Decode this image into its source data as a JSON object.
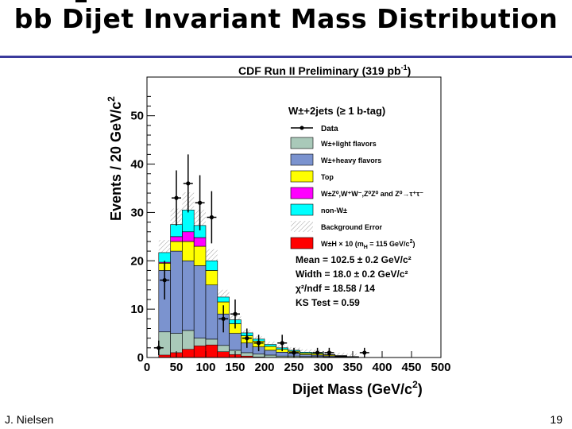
{
  "slide": {
    "title": "bb Dijet Invariant Mass Distribution",
    "author": "J. Nielsen",
    "page_number": "19"
  },
  "chart_data": {
    "type": "bar",
    "title": "CDF Run II Preliminary (319 pb",
    "title_sup": "-1",
    "title_end": ")",
    "subtitle": "W±+2jets (≥ 1 b-tag)",
    "xlabel": "Dijet Mass (GeV/c",
    "xlabel_sup": "2",
    "xlabel_end": ")",
    "ylabel": "Events / 20 GeV/c",
    "ylabel_sup": "2",
    "xlim": [
      0,
      500
    ],
    "ylim": [
      0,
      58
    ],
    "xticks": [
      "0",
      "50",
      "100",
      "150",
      "200",
      "250",
      "300",
      "350",
      "400",
      "450",
      "500"
    ],
    "yticks": [
      "0",
      "10",
      "20",
      "30",
      "40",
      "50"
    ],
    "bin_edges": [
      20,
      40,
      60,
      80,
      100,
      120,
      140,
      160,
      180,
      200,
      220,
      240,
      260,
      280,
      300,
      320,
      340,
      360
    ],
    "series": [
      {
        "name": "W±+light flavors",
        "color": "#a9c9b9",
        "values": [
          5.3,
          5.0,
          5.6,
          4.0,
          3.8,
          2.5,
          1.5,
          1.0,
          0.7,
          0.5,
          0.3,
          0.3,
          0.2,
          0.2,
          0.1,
          0.1,
          0.05
        ]
      },
      {
        "name": "W±+heavy flavors",
        "color": "#7b93cf",
        "values": [
          12.7,
          17.0,
          14.4,
          15.0,
          11.2,
          6.5,
          3.5,
          2.0,
          1.5,
          1.0,
          0.8,
          0.6,
          0.4,
          0.3,
          0.2,
          0.1,
          0.05
        ]
      },
      {
        "name": "Top",
        "color": "#ffff00",
        "values": [
          1.5,
          2.0,
          4.0,
          4.0,
          3.0,
          2.5,
          2.0,
          1.5,
          1.2,
          0.8,
          0.6,
          0.4,
          0.3,
          0.3,
          0.2,
          0.1,
          0.05
        ]
      },
      {
        "name": "W±Z⁰,W⁺W⁻,Z⁰Z⁰ and Z⁰→τ⁺τ⁻",
        "color": "#ff00ff",
        "values": [
          0.2,
          1.0,
          2.0,
          1.8,
          0.0,
          0.0,
          0.0,
          0.0,
          0.0,
          0.0,
          0.0,
          0.0,
          0.0,
          0.0,
          0.0,
          0.0,
          0.0
        ]
      },
      {
        "name": "non-W±",
        "color": "#00ffff",
        "values": [
          2.0,
          2.5,
          4.5,
          2.5,
          2.0,
          1.0,
          0.8,
          0.6,
          0.4,
          0.4,
          0.3,
          0.2,
          0.2,
          0.2,
          0.1,
          0.1,
          0.05
        ]
      }
    ],
    "signal": {
      "name": "W±H × 10 (m",
      "name_sub": "H",
      "name_end": " = 115 GeV/c",
      "name_sup": "2",
      "name_close": ")",
      "color": "#ff0000",
      "bin_edges": [
        20,
        40,
        60,
        80,
        100,
        120,
        140,
        160,
        180,
        200
      ],
      "values": [
        0.5,
        1.0,
        1.7,
        2.4,
        2.6,
        1.2,
        0.6,
        0.3,
        0.1
      ]
    },
    "data_points": [
      {
        "x": 20,
        "y": 2,
        "err": 1.5
      },
      {
        "x": 30,
        "y": 16,
        "err": 4
      },
      {
        "x": 50,
        "y": 33,
        "err": 5.7
      },
      {
        "x": 70,
        "y": 36,
        "err": 6
      },
      {
        "x": 90,
        "y": 32,
        "err": 5.7
      },
      {
        "x": 110,
        "y": 29,
        "err": 5.4
      },
      {
        "x": 130,
        "y": 8,
        "err": 2.8
      },
      {
        "x": 150,
        "y": 9,
        "err": 3
      },
      {
        "x": 170,
        "y": 4,
        "err": 2
      },
      {
        "x": 190,
        "y": 3,
        "err": 1.7
      },
      {
        "x": 230,
        "y": 3,
        "err": 1.7
      },
      {
        "x": 250,
        "y": 1,
        "err": 1
      },
      {
        "x": 290,
        "y": 1,
        "err": 1
      },
      {
        "x": 310,
        "y": 1,
        "err": 1
      },
      {
        "x": 370,
        "y": 1,
        "err": 1
      }
    ],
    "legend": {
      "data_label": "Data",
      "bg_error_label": "Background Error"
    },
    "stats": [
      "Mean = 102.5 ± 0.2 GeV/c²",
      "Width = 18.0 ± 0.2 GeV/c²",
      "χ²/ndf = 18.58 / 14",
      "KS Test = 0.59"
    ]
  }
}
